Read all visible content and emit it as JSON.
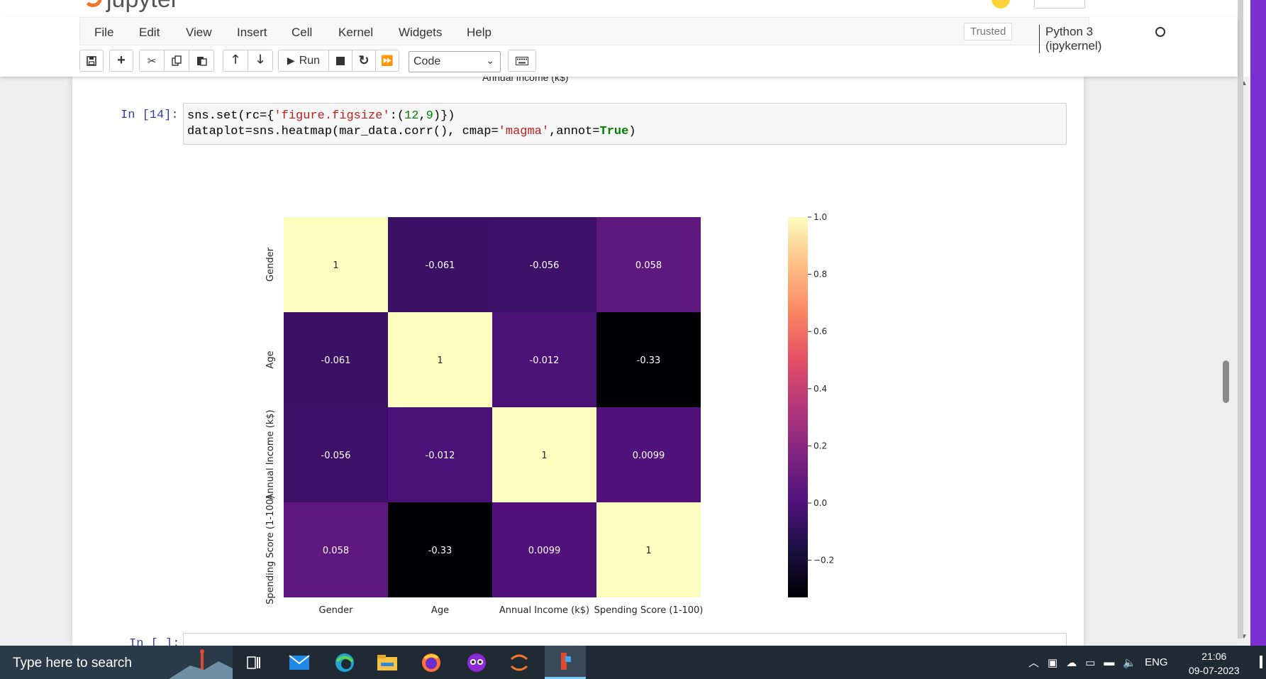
{
  "menubar": {
    "items": [
      "File",
      "Edit",
      "View",
      "Insert",
      "Cell",
      "Kernel",
      "Widgets",
      "Help"
    ],
    "trusted": "Trusted",
    "kernel": "Python 3 (ipykernel)"
  },
  "toolbar": {
    "run_label": "Run",
    "cell_type": "Code"
  },
  "notebook": {
    "previous_output_xlabel": "Annual Income (k$)",
    "cell_prompt": "In [14]:",
    "next_prompt": "In [ ]:"
  },
  "chart_data": {
    "type": "heatmap",
    "rows": [
      "Gender",
      "Age",
      "Annual Income (k$)",
      "Spending Score (1-100)"
    ],
    "columns": [
      "Gender",
      "Age",
      "Annual Income (k$)",
      "Spending Score (1-100)"
    ],
    "values": [
      [
        1,
        -0.061,
        -0.056,
        0.058
      ],
      [
        -0.061,
        1,
        -0.012,
        -0.33
      ],
      [
        -0.056,
        -0.012,
        1,
        0.0099
      ],
      [
        0.058,
        -0.33,
        0.0099,
        1
      ]
    ],
    "annotations": [
      [
        "1",
        "-0.061",
        "-0.056",
        "0.058"
      ],
      [
        "-0.061",
        "1",
        "-0.012",
        "-0.33"
      ],
      [
        "-0.056",
        "-0.012",
        "1",
        "0.0099"
      ],
      [
        "0.058",
        "-0.33",
        "0.0099",
        "1"
      ]
    ],
    "colormap": "magma",
    "colorbar": {
      "vmin": -0.33,
      "vmax": 1.0,
      "ticks": [
        1.0,
        0.8,
        0.6,
        0.4,
        0.2,
        0.0,
        -0.2
      ],
      "tick_labels": [
        "1.0",
        "0.8",
        "0.6",
        "0.4",
        "0.2",
        "0.0",
        "−0.2"
      ]
    }
  },
  "taskbar": {
    "search_placeholder": "Type here to search",
    "language": "ENG",
    "time": "21:06",
    "date": "09-07-2023"
  }
}
